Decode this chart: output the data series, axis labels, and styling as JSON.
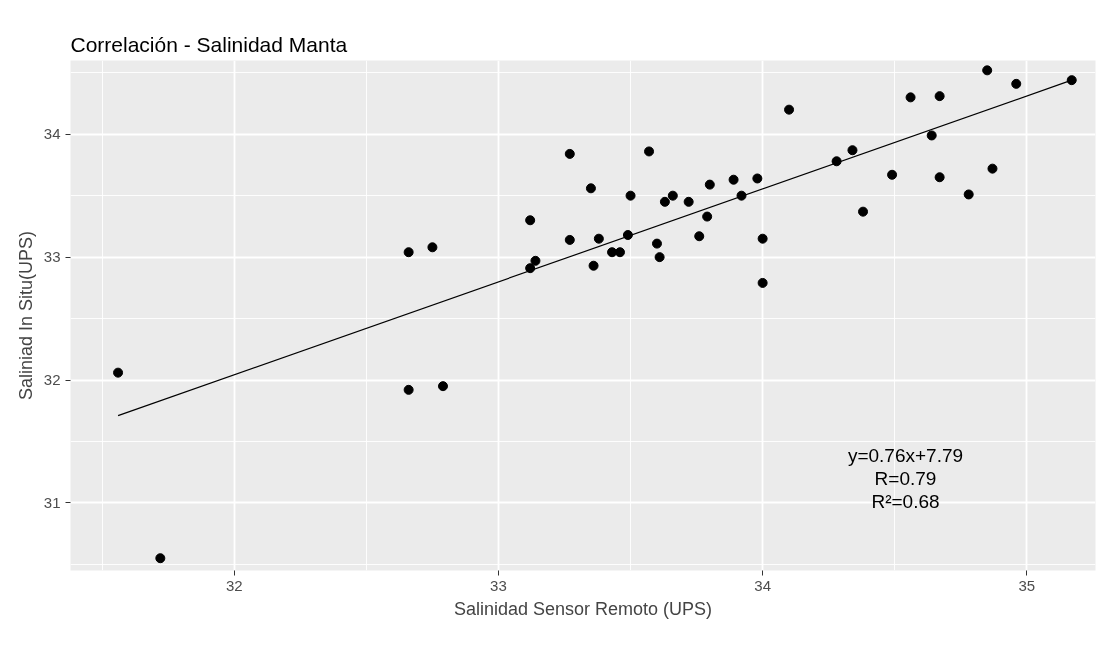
{
  "chart_data": {
    "type": "scatter",
    "title": "Correlación - Salinidad Manta",
    "xlabel": "Salinidad Sensor Remoto (UPS)",
    "ylabel": "Saliniad In Situ(UPS)",
    "annotations": [
      "y=0.76x+7.79",
      "R=0.79",
      "R²=0.68"
    ],
    "xlim": [
      31.38,
      35.26
    ],
    "ylim": [
      30.45,
      34.6
    ],
    "xticks": [
      32,
      33,
      34,
      35
    ],
    "yticks": [
      31,
      32,
      33,
      34
    ],
    "grid": true,
    "series": [
      {
        "marker": "circle",
        "color": "#000000",
        "x": [
          31.56,
          31.72,
          32.66,
          32.75,
          32.66,
          32.79,
          33.12,
          33.27,
          33.27,
          33.14,
          33.12,
          33.57,
          33.35,
          33.5,
          33.63,
          33.66,
          33.72,
          33.8,
          33.89,
          33.98,
          33.92,
          33.79,
          33.38,
          33.49,
          33.43,
          33.46,
          33.36,
          33.6,
          33.61,
          33.76,
          34.0,
          34.0,
          34.1,
          34.28,
          34.34,
          34.49,
          34.38,
          34.56,
          34.67,
          34.64,
          34.67,
          34.87,
          34.78,
          34.96,
          35.17,
          34.85
        ],
        "values": [
          32.06,
          30.55,
          33.04,
          33.08,
          31.92,
          31.95,
          33.3,
          33.84,
          33.14,
          32.97,
          32.91,
          33.86,
          33.56,
          33.5,
          33.45,
          33.5,
          33.45,
          33.59,
          33.63,
          33.64,
          33.5,
          33.33,
          33.15,
          33.18,
          33.04,
          33.04,
          32.93,
          33.11,
          33.0,
          33.17,
          33.15,
          32.79,
          34.2,
          33.78,
          33.87,
          33.67,
          33.37,
          34.3,
          34.31,
          33.99,
          33.65,
          33.72,
          33.51,
          34.41,
          34.44,
          34.52
        ]
      },
      {
        "type": "line",
        "color": "#000000",
        "x": [
          31.56,
          35.17
        ],
        "values": [
          31.71,
          34.44
        ]
      }
    ]
  }
}
